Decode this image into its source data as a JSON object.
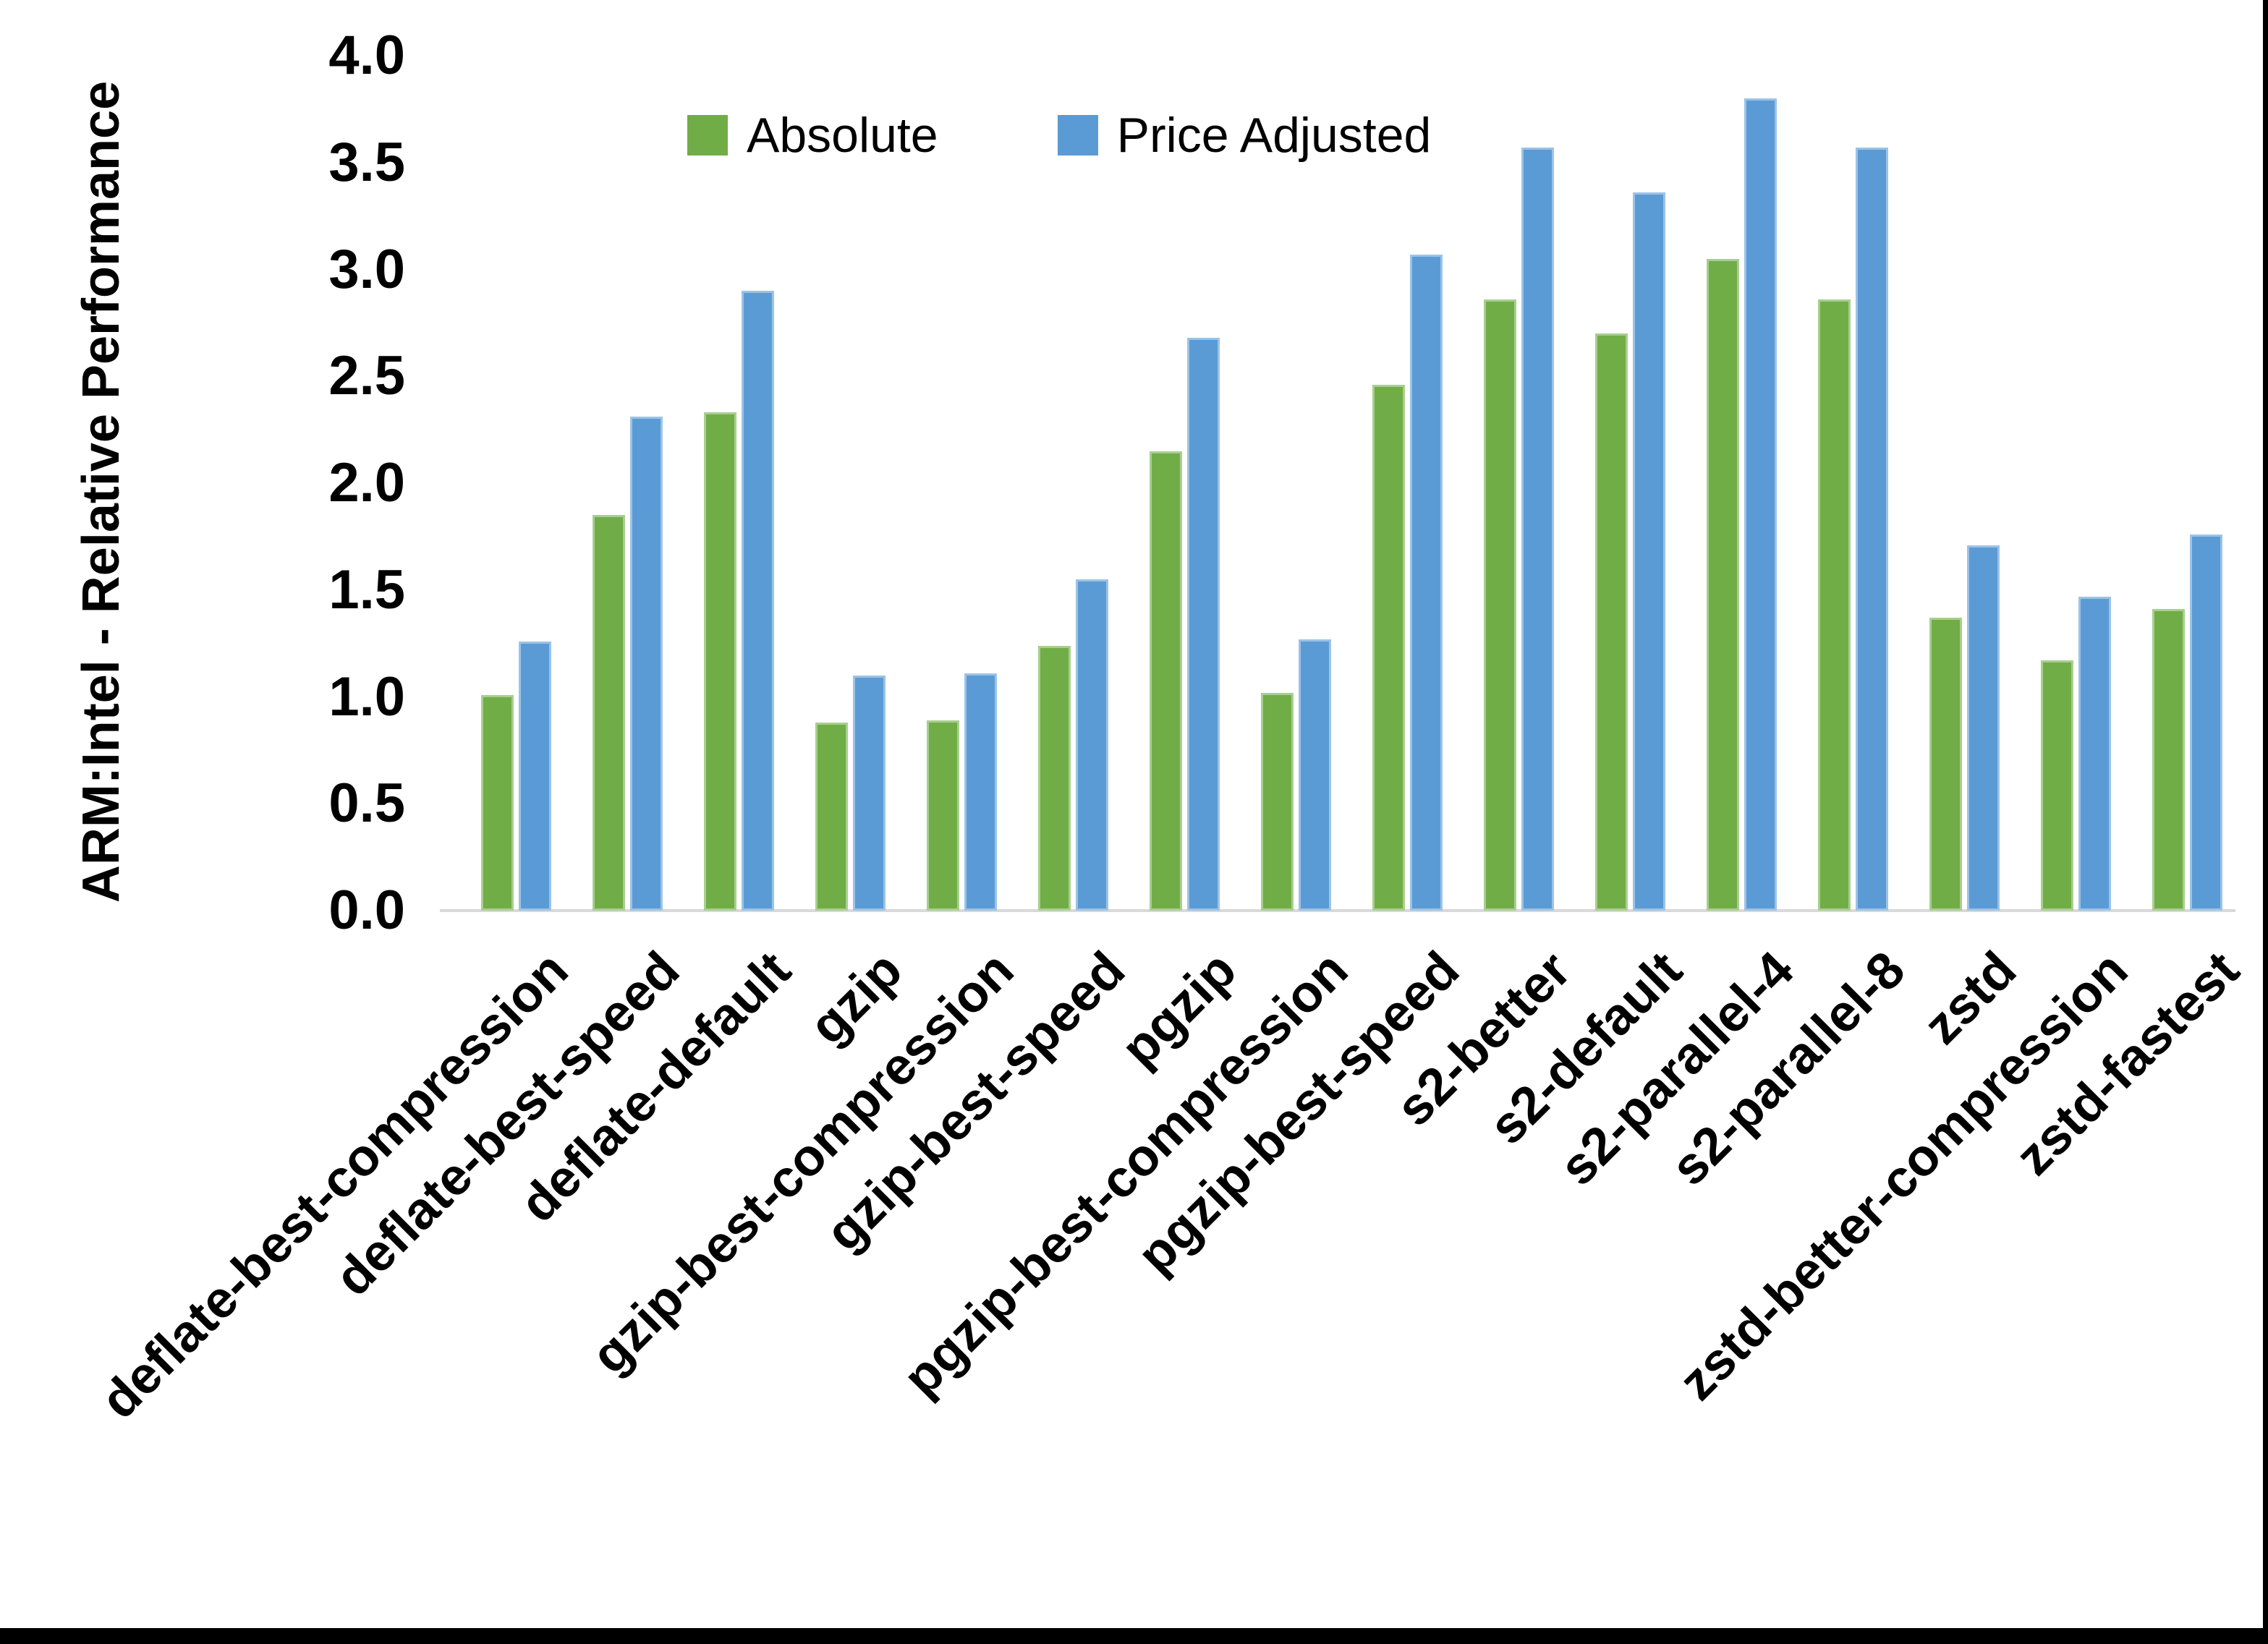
{
  "y_axis": {
    "title": "ARM:Intel - Relative Performance",
    "tick_labels": [
      "0.0",
      "0.5",
      "1.0",
      "1.5",
      "2.0",
      "2.5",
      "3.0",
      "3.5",
      "4.0"
    ]
  },
  "chart_data": {
    "type": "bar",
    "title": "",
    "categories": [
      "deflate-best-compression",
      "deflate-best-speed",
      "deflate-default",
      "gzip",
      "gzip-best-compression",
      "gzip-best-speed",
      "pgzip",
      "pgzip-best-compression",
      "pgzip-best-speed",
      "s2-better",
      "s2-default",
      "s2-parallel-4",
      "s2-parallel-8",
      "zstd",
      "zstd-better-compression",
      "zstd-fastest"
    ],
    "series": [
      {
        "name": "Absolute",
        "color": "#70AD47",
        "values": [
          1.01,
          1.85,
          2.33,
          0.88,
          0.89,
          1.24,
          2.15,
          1.02,
          2.46,
          2.86,
          2.7,
          3.05,
          2.86,
          1.37,
          1.17,
          1.41
        ]
      },
      {
        "name": "Price Adjusted",
        "color": "#5B9BD5",
        "values": [
          1.26,
          2.31,
          2.9,
          1.1,
          1.11,
          1.55,
          2.68,
          1.27,
          3.07,
          3.57,
          3.36,
          3.8,
          3.57,
          1.71,
          1.47,
          1.76
        ]
      }
    ],
    "xlabel": "",
    "ylabel": "ARM:Intel - Relative Performance",
    "ylim": [
      0.0,
      4.0
    ],
    "ytick_step": 0.5,
    "grid": false,
    "legend_position": "top-center",
    "axis_line_color": "#d9d9d9"
  }
}
